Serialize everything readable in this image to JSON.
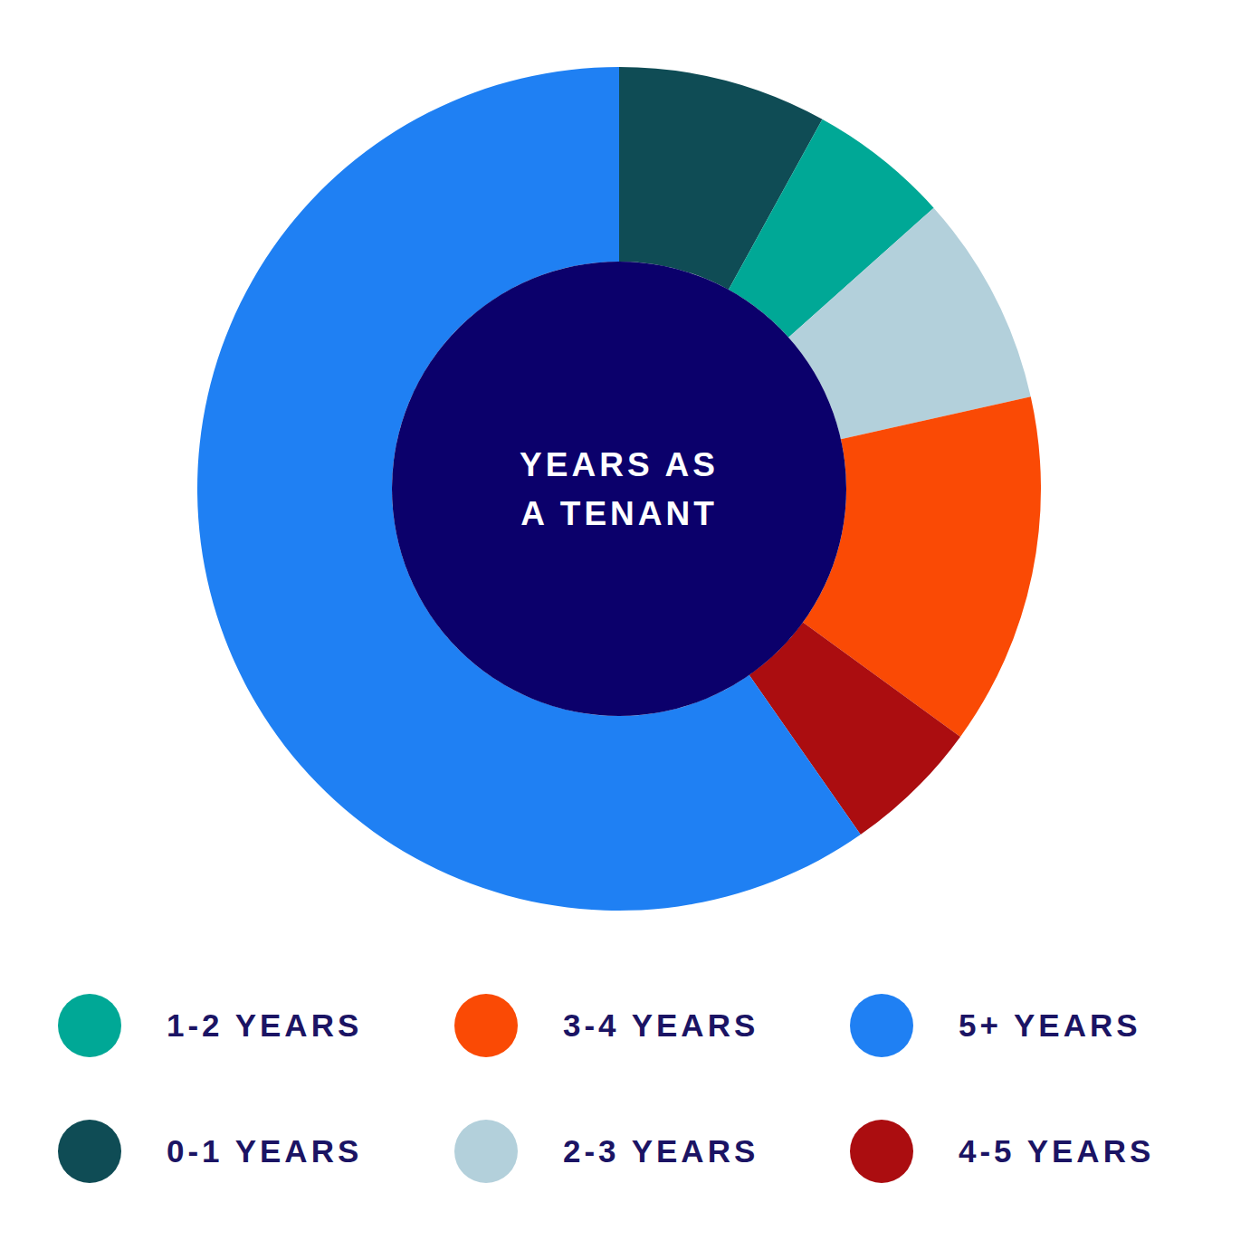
{
  "chart_data": {
    "type": "donut",
    "center_label": [
      "YEARS AS",
      "A TENANT"
    ],
    "categories": [
      "0-1 YEARS",
      "1-2 YEARS",
      "2-3 YEARS",
      "3-4 YEARS",
      "4-5 YEARS",
      "5+ YEARS"
    ],
    "values": [
      8,
      5.4,
      8.1,
      13.5,
      5.3,
      59.7
    ],
    "colors": [
      "#0f4c55",
      "#00a896",
      "#b3d0db",
      "#fa4a05",
      "#ab0d10",
      "#1f80f3"
    ],
    "legend": "bottom"
  }
}
